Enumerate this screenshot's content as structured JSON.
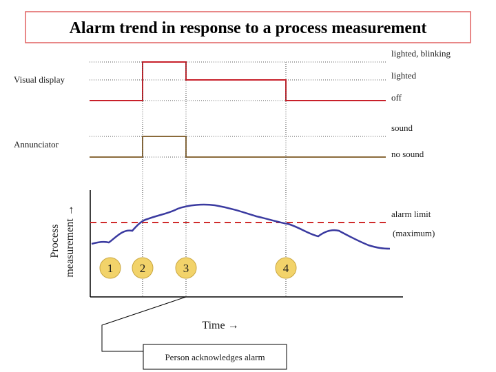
{
  "title": "Alarm trend in response to a process measurement",
  "visual_display": {
    "label": "Visual display",
    "states": {
      "blinking": "lighted, blinking",
      "lighted": "lighted",
      "off": "off"
    }
  },
  "annunciator": {
    "label": "Annunciator",
    "states": {
      "sound": "sound",
      "no_sound": "no sound"
    }
  },
  "process": {
    "ylabel_line1": "Process",
    "ylabel_line2": "measurement →",
    "alarm_limit_label": "alarm limit",
    "alarm_limit_sub": "(maximum)",
    "xlabel": "Time →"
  },
  "events": [
    "1",
    "2",
    "3",
    "4"
  ],
  "callout": "Person acknowledges alarm",
  "colors": {
    "visual_trace": "#c8202a",
    "annunciator_trace": "#8a6a3a",
    "process_curve": "#3a3aa0",
    "alarm_limit": "#d02a2a",
    "event_circle": "#f2d36a"
  }
}
